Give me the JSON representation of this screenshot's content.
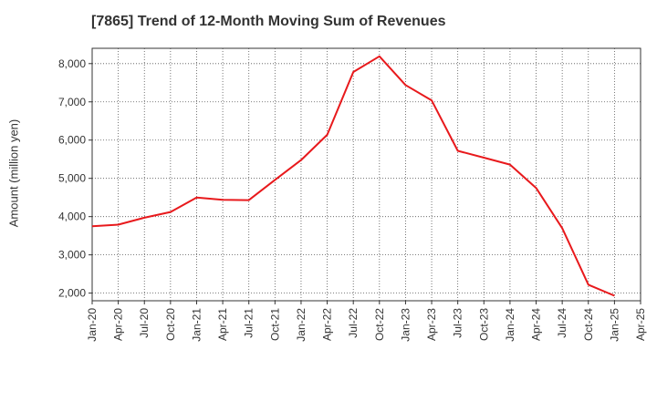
{
  "chart_data": {
    "type": "line",
    "title": "[7865]  Trend of 12-Month Moving Sum of Revenues",
    "xlabel": "",
    "ylabel": "Amount (million yen)",
    "categories": [
      "Jan-20",
      "Apr-20",
      "Jul-20",
      "Oct-20",
      "Jan-21",
      "Apr-21",
      "Jul-21",
      "Oct-21",
      "Jan-22",
      "Apr-22",
      "Jul-22",
      "Oct-22",
      "Jan-23",
      "Apr-23",
      "Jul-23",
      "Oct-23",
      "Jan-24",
      "Apr-24",
      "Jul-24",
      "Oct-24",
      "Jan-25",
      "Apr-25"
    ],
    "ylim": [
      1800,
      8400
    ],
    "yticks": [
      2000,
      3000,
      4000,
      5000,
      6000,
      7000,
      8000
    ],
    "ytick_labels": [
      "2,000",
      "3,000",
      "4,000",
      "5,000",
      "6,000",
      "7,000",
      "8,000"
    ],
    "grid": true,
    "series": [
      {
        "color": "#e8191c",
        "values": [
          3750,
          3790,
          3970,
          4120,
          4500,
          4440,
          4430,
          4960,
          5480,
          6140,
          7780,
          8190,
          7440,
          7040,
          5720,
          5540,
          5360,
          4750,
          3700,
          2220,
          1930,
          null
        ]
      }
    ]
  }
}
